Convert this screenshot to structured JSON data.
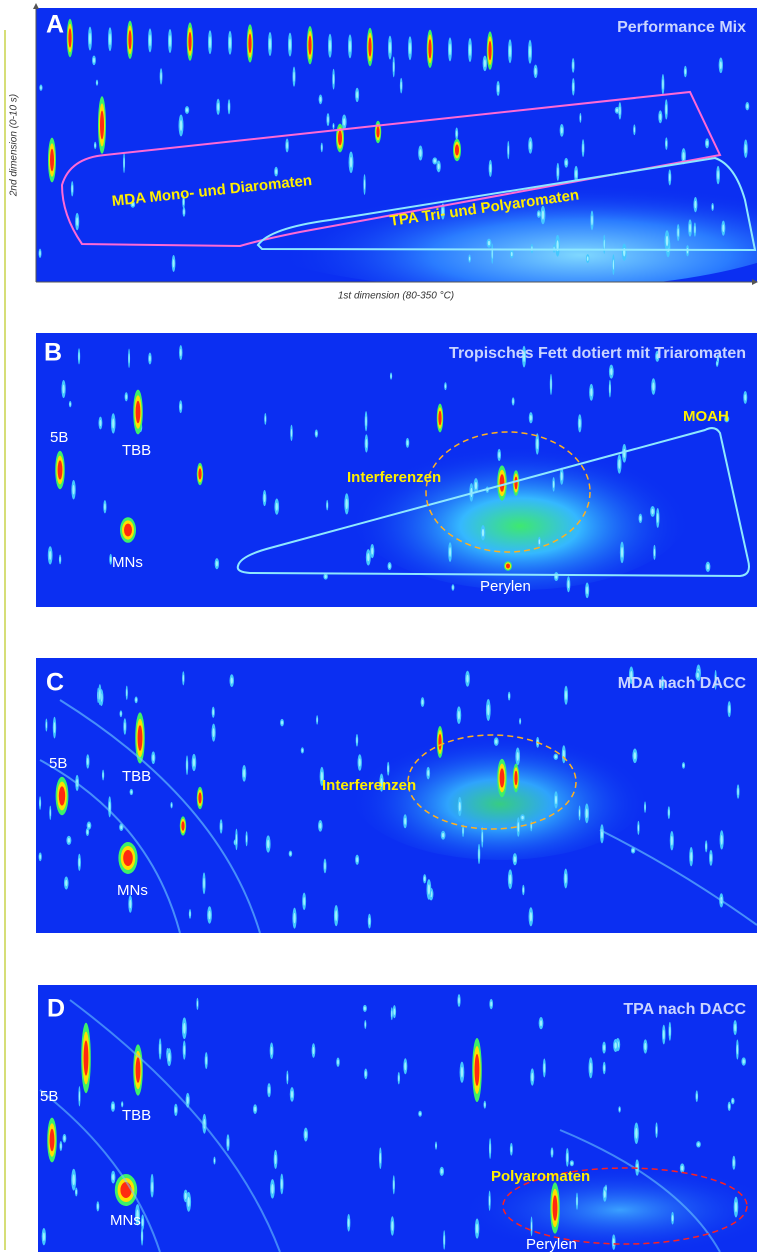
{
  "axes": {
    "y_label": "2nd dimension (0-10 s)",
    "x_label": "1st dimension (80-350 °C)"
  },
  "panels": [
    {
      "letter": "A",
      "title": "Performance Mix",
      "labels": [
        "MDA Mono- und Diaromaten",
        "TPA Tri- und Polyaromaten"
      ]
    },
    {
      "letter": "B",
      "title": "Tropisches Fett dotiert mit Triaromaten",
      "labels": [
        "5B",
        "TBB",
        "MNs",
        "Interferenzen",
        "MOAH",
        "Perylen"
      ]
    },
    {
      "letter": "C",
      "title": "MDA nach DACC",
      "labels": [
        "5B",
        "TBB",
        "MNs",
        "Interferenzen"
      ]
    },
    {
      "letter": "D",
      "title": "TPA nach DACC",
      "labels": [
        "5B",
        "TBB",
        "MNs",
        "Polyaromaten",
        "Perylen"
      ]
    }
  ]
}
